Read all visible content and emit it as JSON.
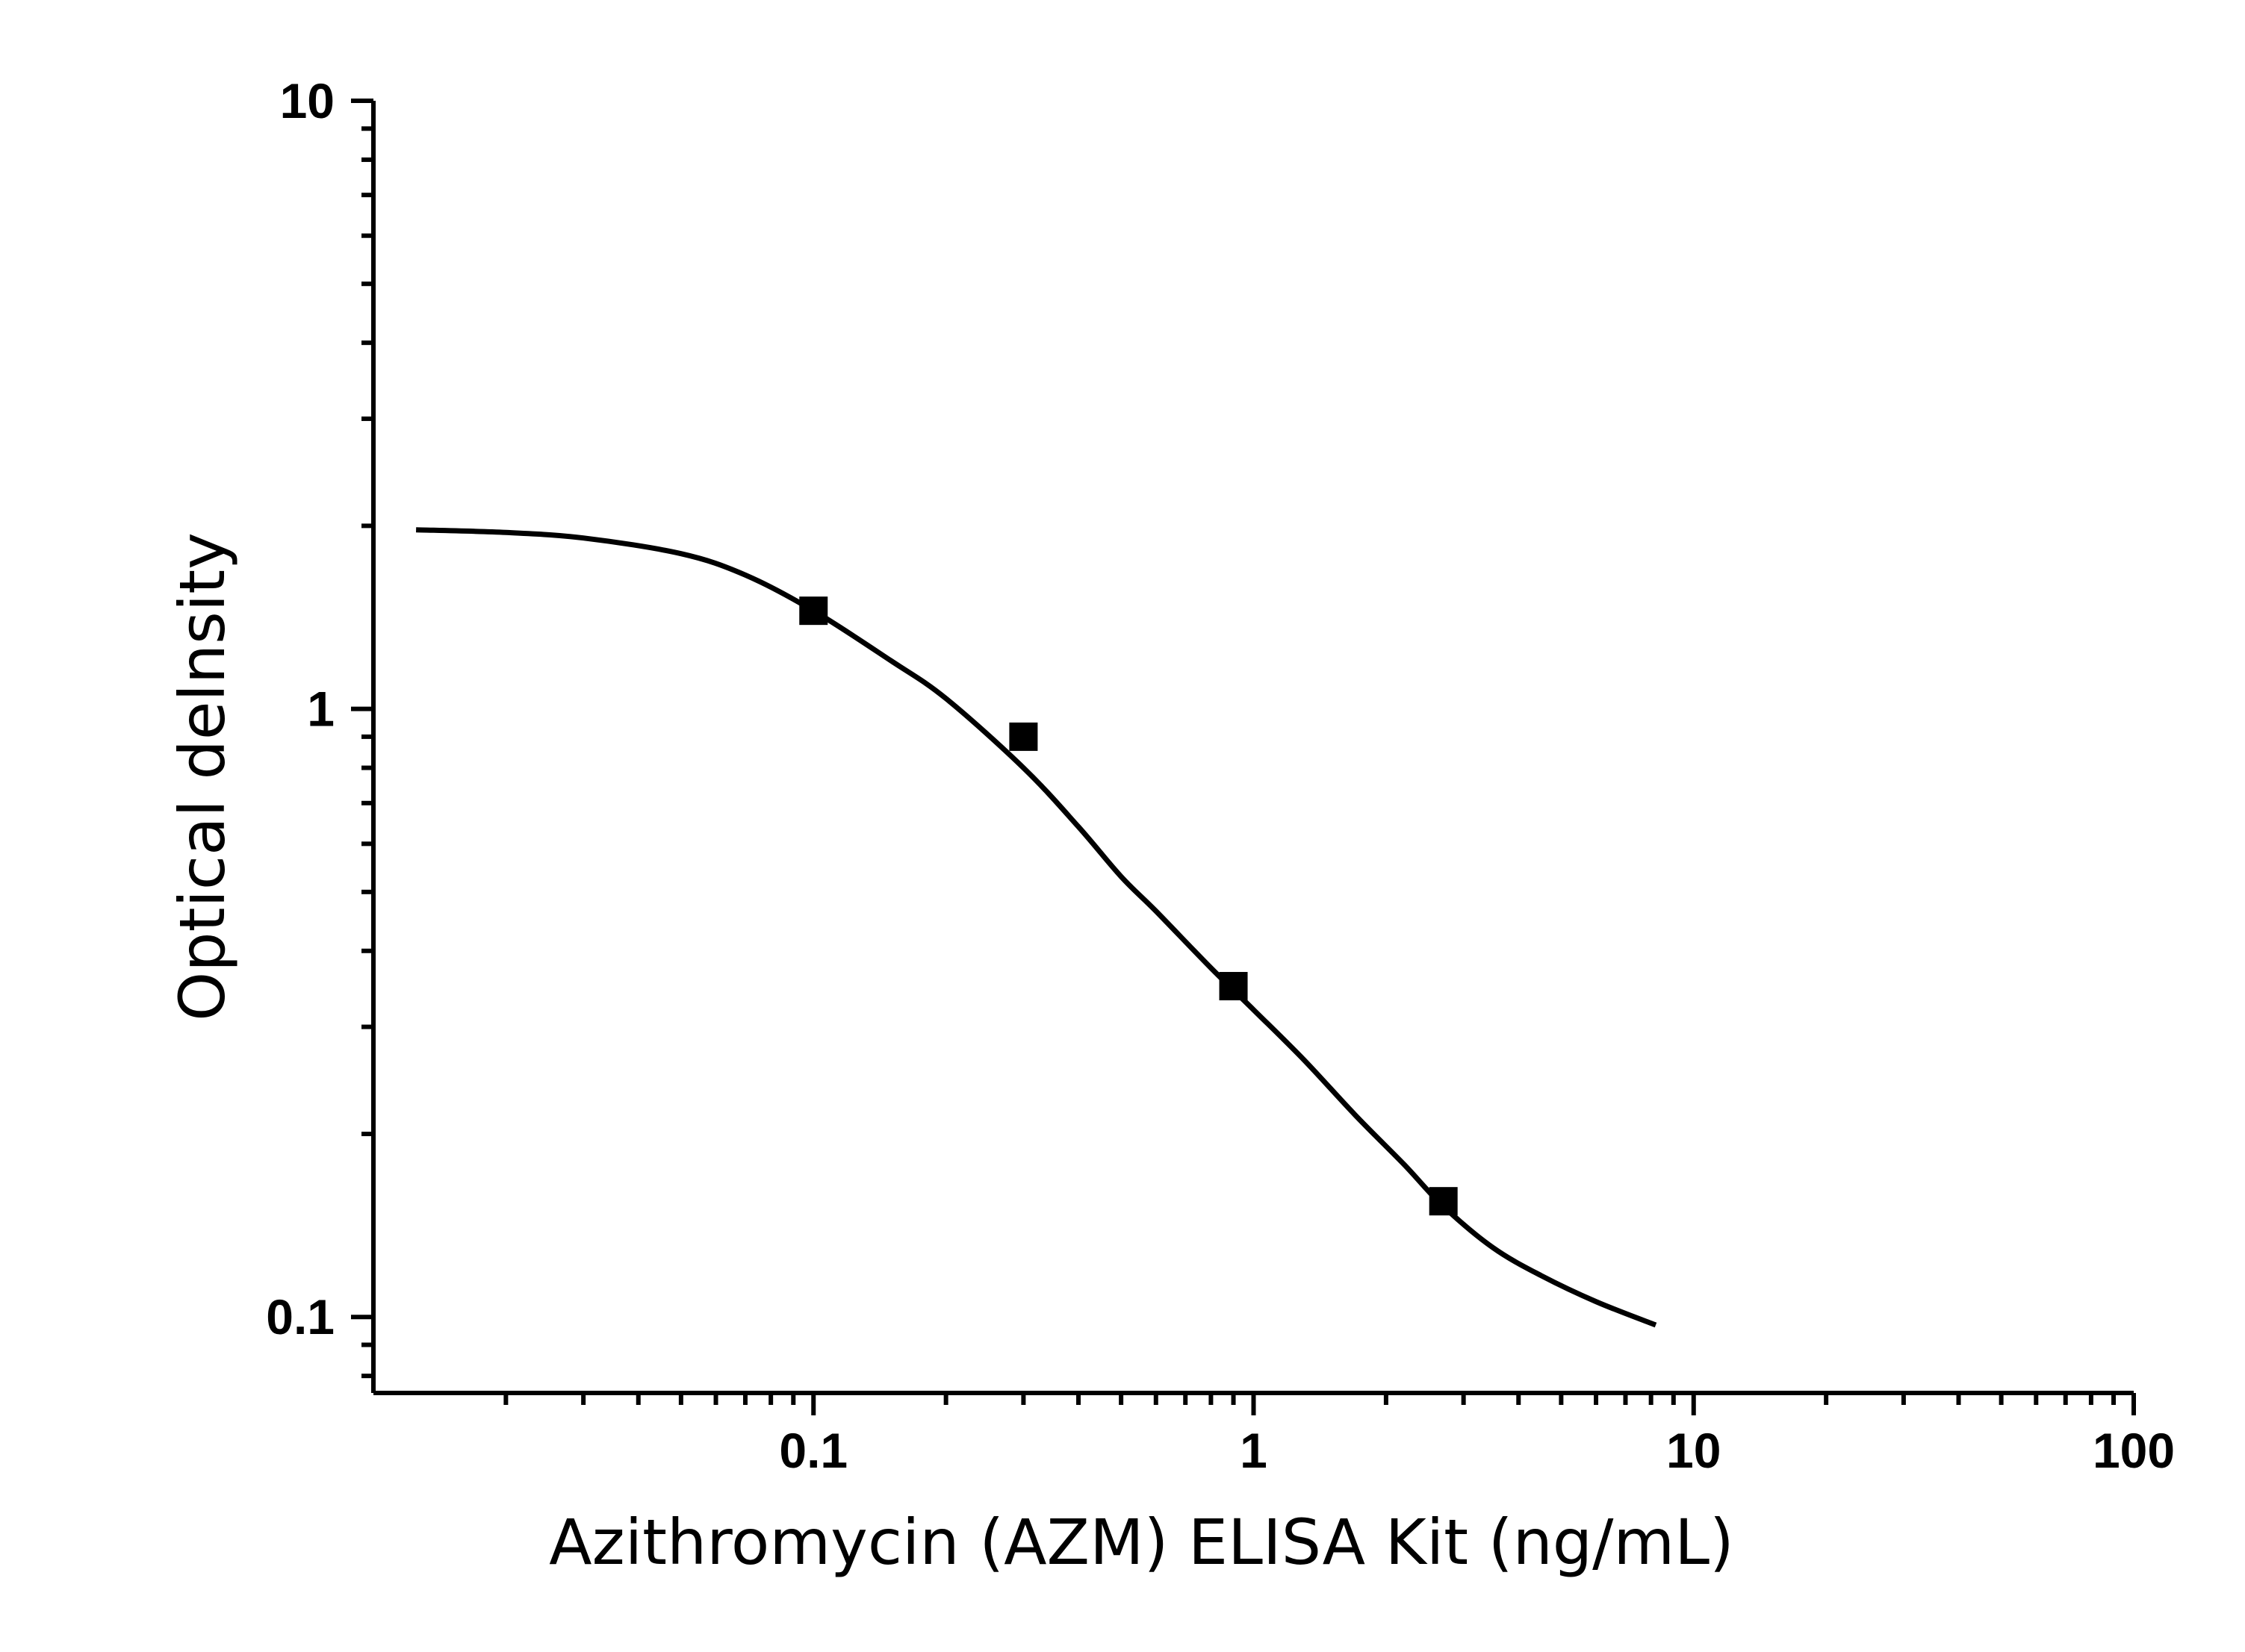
{
  "chart_data": {
    "type": "scatter",
    "xlabel": "Azithromycin (AZM) ELISA Kit (ng/mL)",
    "ylabel": "Optical delnsity",
    "x_scale": "log",
    "y_scale": "log",
    "xlim": [
      0.01,
      100
    ],
    "ylim": [
      0.075,
      10
    ],
    "x_ticks": [
      {
        "value": 0.1,
        "label": "0.1"
      },
      {
        "value": 1,
        "label": "1"
      },
      {
        "value": 10,
        "label": "10"
      },
      {
        "value": 100,
        "label": "100"
      }
    ],
    "y_ticks": [
      {
        "value": 0.1,
        "label": "0.1"
      },
      {
        "value": 1,
        "label": "1"
      },
      {
        "value": 10,
        "label": "10"
      }
    ],
    "grid": false,
    "series": [
      {
        "points": [
          {
            "x": 0.1,
            "y": 1.45
          },
          {
            "x": 0.3,
            "y": 0.9
          },
          {
            "x": 0.9,
            "y": 0.35
          },
          {
            "x": 2.7,
            "y": 0.155
          }
        ],
        "fit_curve": [
          {
            "x": 0.0125,
            "y": 1.97
          },
          {
            "x": 0.02,
            "y": 1.95
          },
          {
            "x": 0.03,
            "y": 1.91
          },
          {
            "x": 0.05,
            "y": 1.8
          },
          {
            "x": 0.07,
            "y": 1.66
          },
          {
            "x": 0.1,
            "y": 1.45
          },
          {
            "x": 0.15,
            "y": 1.2
          },
          {
            "x": 0.2,
            "y": 1.04
          },
          {
            "x": 0.3,
            "y": 0.8
          },
          {
            "x": 0.4,
            "y": 0.64
          },
          {
            "x": 0.5,
            "y": 0.53
          },
          {
            "x": 0.6,
            "y": 0.465
          },
          {
            "x": 0.8,
            "y": 0.375
          },
          {
            "x": 1.0,
            "y": 0.32
          },
          {
            "x": 1.3,
            "y": 0.265
          },
          {
            "x": 1.7,
            "y": 0.215
          },
          {
            "x": 2.2,
            "y": 0.178
          },
          {
            "x": 2.7,
            "y": 0.152
          },
          {
            "x": 3.5,
            "y": 0.13
          },
          {
            "x": 4.5,
            "y": 0.117
          },
          {
            "x": 6.0,
            "y": 0.106
          },
          {
            "x": 8.2,
            "y": 0.097
          }
        ]
      }
    ]
  }
}
